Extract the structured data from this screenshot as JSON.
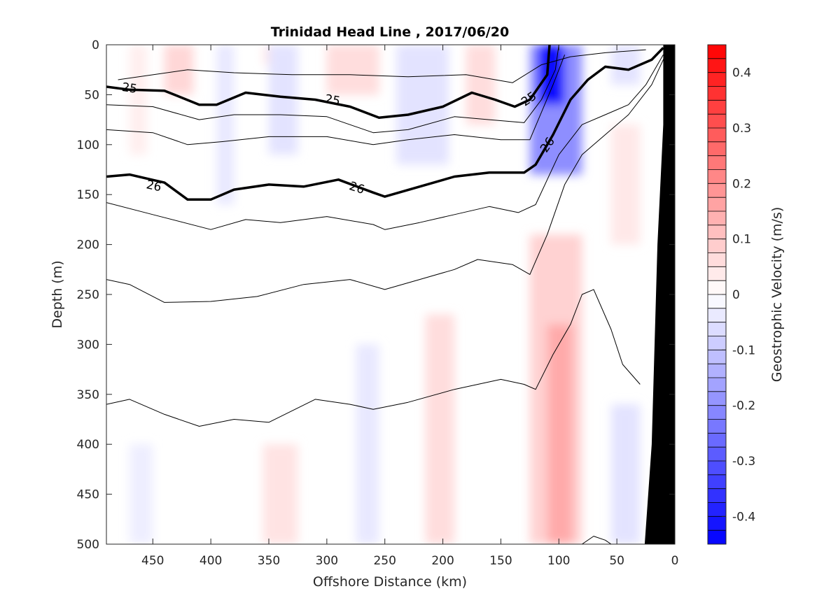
{
  "chart_data": {
    "type": "heatmap",
    "title": "Trinidad Head Line , 2017/06/20",
    "xlabel": "Offshore Distance (km)",
    "ylabel": "Depth (m)",
    "xlim": [
      490,
      0
    ],
    "ylim": [
      0,
      500
    ],
    "x_ticks": [
      450,
      400,
      350,
      300,
      250,
      200,
      150,
      100,
      50,
      0
    ],
    "y_ticks": [
      0,
      50,
      100,
      150,
      200,
      250,
      300,
      350,
      400,
      450,
      500
    ],
    "colorbar": {
      "label": "Geostrophic Velocity (m/s)",
      "range": [
        -0.45,
        0.45
      ],
      "step": 0.025,
      "ticks": [
        0.4,
        0.3,
        0.2,
        0.1,
        0,
        -0.1,
        -0.2,
        -0.3,
        -0.4
      ],
      "neg_color": "#0000ff",
      "pos_color": "#ff0000"
    },
    "velocity_cells": [
      {
        "x": [
          470,
          455
        ],
        "y": [
          0,
          110
        ],
        "v": 0.03
      },
      {
        "x": [
          440,
          415
        ],
        "y": [
          0,
          50
        ],
        "v": 0.07
      },
      {
        "x": [
          395,
          380
        ],
        "y": [
          0,
          160
        ],
        "v": -0.04
      },
      {
        "x": [
          355,
          330
        ],
        "y": [
          0,
          20
        ],
        "v": 0.04
      },
      {
        "x": [
          350,
          325
        ],
        "y": [
          0,
          110
        ],
        "v": -0.05
      },
      {
        "x": [
          300,
          255
        ],
        "y": [
          0,
          50
        ],
        "v": 0.06
      },
      {
        "x": [
          240,
          195
        ],
        "y": [
          0,
          120
        ],
        "v": -0.05
      },
      {
        "x": [
          180,
          155
        ],
        "y": [
          0,
          80
        ],
        "v": 0.06
      },
      {
        "x": [
          125,
          80
        ],
        "y": [
          0,
          130
        ],
        "v": -0.2
      },
      {
        "x": [
          118,
          95
        ],
        "y": [
          0,
          60
        ],
        "v": -0.42
      },
      {
        "x": [
          55,
          30
        ],
        "y": [
          0,
          40
        ],
        "v": -0.05
      },
      {
        "x": [
          55,
          30
        ],
        "y": [
          80,
          200
        ],
        "v": 0.04
      },
      {
        "x": [
          125,
          80
        ],
        "y": [
          190,
          500
        ],
        "v": 0.08
      },
      {
        "x": [
          110,
          88
        ],
        "y": [
          280,
          500
        ],
        "v": 0.15
      },
      {
        "x": [
          215,
          190
        ],
        "y": [
          270,
          500
        ],
        "v": 0.06
      },
      {
        "x": [
          355,
          325
        ],
        "y": [
          400,
          500
        ],
        "v": 0.05
      },
      {
        "x": [
          275,
          255
        ],
        "y": [
          300,
          500
        ],
        "v": -0.04
      },
      {
        "x": [
          470,
          450
        ],
        "y": [
          400,
          500
        ],
        "v": -0.03
      },
      {
        "x": [
          55,
          30
        ],
        "y": [
          360,
          500
        ],
        "v": -0.05
      }
    ],
    "contours": [
      {
        "label": "",
        "points": [
          [
            480,
            35
          ],
          [
            420,
            25
          ],
          [
            380,
            28
          ],
          [
            330,
            30
          ],
          [
            280,
            30
          ],
          [
            230,
            32
          ],
          [
            180,
            30
          ],
          [
            140,
            38
          ],
          [
            115,
            20
          ],
          [
            90,
            12
          ],
          [
            60,
            8
          ],
          [
            25,
            5
          ]
        ]
      },
      {
        "label": "25",
        "bold": true,
        "points": [
          [
            490,
            42
          ],
          [
            470,
            45
          ],
          [
            440,
            46
          ],
          [
            410,
            60
          ],
          [
            395,
            60
          ],
          [
            370,
            48
          ],
          [
            340,
            52
          ],
          [
            310,
            55
          ],
          [
            280,
            62
          ],
          [
            255,
            73
          ],
          [
            230,
            70
          ],
          [
            200,
            62
          ],
          [
            175,
            48
          ],
          [
            155,
            55
          ],
          [
            138,
            62
          ],
          [
            125,
            55
          ],
          [
            110,
            30
          ],
          [
            108,
            0
          ]
        ]
      },
      {
        "label": "",
        "points": [
          [
            490,
            60
          ],
          [
            450,
            62
          ],
          [
            410,
            75
          ],
          [
            380,
            70
          ],
          [
            340,
            70
          ],
          [
            300,
            72
          ],
          [
            260,
            88
          ],
          [
            230,
            85
          ],
          [
            190,
            72
          ],
          [
            160,
            75
          ],
          [
            130,
            78
          ],
          [
            115,
            55
          ],
          [
            103,
            25
          ],
          [
            100,
            0
          ]
        ]
      },
      {
        "label": "",
        "points": [
          [
            490,
            85
          ],
          [
            450,
            88
          ],
          [
            420,
            100
          ],
          [
            390,
            97
          ],
          [
            350,
            92
          ],
          [
            300,
            92
          ],
          [
            260,
            100
          ],
          [
            230,
            95
          ],
          [
            190,
            90
          ],
          [
            150,
            95
          ],
          [
            125,
            95
          ],
          [
            105,
            40
          ],
          [
            95,
            10
          ]
        ]
      },
      {
        "label": "26",
        "bold": true,
        "points": [
          [
            490,
            132
          ],
          [
            470,
            130
          ],
          [
            440,
            138
          ],
          [
            420,
            155
          ],
          [
            400,
            155
          ],
          [
            380,
            145
          ],
          [
            350,
            140
          ],
          [
            320,
            142
          ],
          [
            290,
            135
          ],
          [
            260,
            148
          ],
          [
            250,
            152
          ],
          [
            220,
            142
          ],
          [
            190,
            132
          ],
          [
            160,
            128
          ],
          [
            130,
            128
          ],
          [
            120,
            120
          ],
          [
            105,
            90
          ],
          [
            90,
            55
          ],
          [
            75,
            35
          ],
          [
            60,
            22
          ],
          [
            40,
            25
          ],
          [
            20,
            15
          ],
          [
            10,
            3
          ]
        ]
      },
      {
        "label": "",
        "points": [
          [
            490,
            158
          ],
          [
            450,
            170
          ],
          [
            400,
            185
          ],
          [
            370,
            175
          ],
          [
            340,
            178
          ],
          [
            300,
            172
          ],
          [
            260,
            180
          ],
          [
            250,
            185
          ],
          [
            220,
            178
          ],
          [
            190,
            170
          ],
          [
            160,
            162
          ],
          [
            135,
            168
          ],
          [
            120,
            160
          ],
          [
            100,
            110
          ],
          [
            80,
            80
          ],
          [
            60,
            70
          ],
          [
            40,
            60
          ],
          [
            25,
            40
          ],
          [
            10,
            10
          ]
        ]
      },
      {
        "label": "",
        "points": [
          [
            490,
            235
          ],
          [
            470,
            240
          ],
          [
            440,
            258
          ],
          [
            400,
            257
          ],
          [
            360,
            252
          ],
          [
            320,
            240
          ],
          [
            280,
            235
          ],
          [
            250,
            245
          ],
          [
            220,
            235
          ],
          [
            190,
            225
          ],
          [
            170,
            215
          ],
          [
            140,
            220
          ],
          [
            125,
            230
          ],
          [
            110,
            190
          ],
          [
            95,
            140
          ],
          [
            80,
            110
          ],
          [
            60,
            90
          ],
          [
            40,
            70
          ],
          [
            20,
            40
          ],
          [
            8,
            10
          ]
        ]
      },
      {
        "label": "",
        "points": [
          [
            490,
            360
          ],
          [
            470,
            355
          ],
          [
            440,
            370
          ],
          [
            410,
            382
          ],
          [
            380,
            375
          ],
          [
            350,
            378
          ],
          [
            310,
            355
          ],
          [
            280,
            360
          ],
          [
            260,
            365
          ],
          [
            230,
            358
          ],
          [
            190,
            345
          ],
          [
            150,
            335
          ],
          [
            130,
            340
          ],
          [
            120,
            345
          ],
          [
            105,
            310
          ],
          [
            90,
            280
          ],
          [
            80,
            250
          ],
          [
            70,
            245
          ],
          [
            55,
            285
          ],
          [
            45,
            320
          ],
          [
            30,
            340
          ]
        ]
      },
      {
        "label": "",
        "points": [
          [
            80,
            500
          ],
          [
            70,
            492
          ],
          [
            60,
            496
          ],
          [
            55,
            500
          ]
        ]
      }
    ],
    "contour_label_points": [
      {
        "text": "25",
        "x": 470,
        "y": 43,
        "angle": 8
      },
      {
        "text": "25",
        "x": 295,
        "y": 55,
        "angle": 10
      },
      {
        "text": "25",
        "x": 126,
        "y": 54,
        "angle": -35
      },
      {
        "text": "26",
        "x": 449,
        "y": 141,
        "angle": 12
      },
      {
        "text": "26",
        "x": 274,
        "y": 143,
        "angle": 18
      },
      {
        "text": "26",
        "x": 110,
        "y": 100,
        "angle": -55
      }
    ],
    "bathymetry": [
      [
        10,
        0
      ],
      [
        0,
        0
      ],
      [
        0,
        500
      ],
      [
        26,
        500
      ],
      [
        20,
        400
      ],
      [
        15,
        200
      ],
      [
        10,
        80
      ]
    ]
  }
}
